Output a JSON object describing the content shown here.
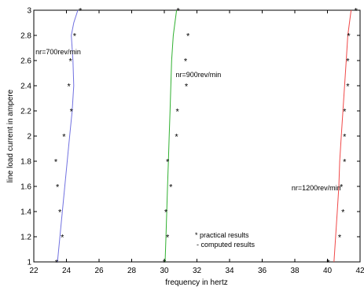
{
  "chart_data": {
    "type": "line",
    "xlabel": "frequency in hertz",
    "ylabel": "line load current in ampere",
    "xlim": [
      22,
      42
    ],
    "ylim": [
      1,
      3
    ],
    "x_ticks": [
      "22",
      "24",
      "26",
      "28",
      "30",
      "32",
      "34",
      "36",
      "38",
      "40",
      "42"
    ],
    "y_ticks": [
      "1",
      "1.2",
      "1.4",
      "1.6",
      "1.8",
      "2",
      "2.2",
      "2.4",
      "2.6",
      "2.8",
      "3"
    ],
    "grid": false,
    "legend": [
      "* practical results",
      "- computed results"
    ],
    "series": [
      {
        "name": "nr=700rev/min",
        "color": "#7070e0",
        "marker_color": "#2ec8e0",
        "computed": {
          "x": [
            23.45,
            23.6,
            23.75,
            23.9,
            24.05,
            24.2,
            24.35,
            24.45,
            24.4,
            24.3,
            24.45,
            24.7
          ],
          "y": [
            1.0,
            1.2,
            1.4,
            1.6,
            1.8,
            2.0,
            2.2,
            2.4,
            2.6,
            2.8,
            2.9,
            3.0
          ]
        },
        "practical": {
          "x": [
            23.4,
            23.75,
            23.6,
            23.45,
            23.35,
            23.85,
            24.3,
            24.15,
            24.25,
            24.5,
            24.85
          ],
          "y": [
            1.0,
            1.2,
            1.4,
            1.6,
            1.8,
            2.0,
            2.2,
            2.4,
            2.6,
            2.8,
            3.0
          ]
        }
      },
      {
        "name": "nr=900rev/min",
        "color": "#30b030",
        "marker_color": "#d040d0",
        "computed": {
          "x": [
            30.05,
            30.1,
            30.15,
            30.2,
            30.25,
            30.3,
            30.35,
            30.4,
            30.45,
            30.55,
            30.65,
            30.75
          ],
          "y": [
            1.0,
            1.2,
            1.4,
            1.6,
            1.8,
            2.0,
            2.2,
            2.4,
            2.6,
            2.8,
            2.9,
            3.0
          ]
        },
        "practical": {
          "x": [
            30.0,
            30.2,
            30.1,
            30.4,
            30.2,
            30.75,
            30.8,
            31.35,
            31.3,
            31.45,
            30.85
          ],
          "y": [
            1.0,
            1.2,
            1.4,
            1.6,
            1.8,
            2.0,
            2.2,
            2.4,
            2.6,
            2.8,
            3.0
          ]
        }
      },
      {
        "name": "nr=1200rev/min",
        "color": "#f04848",
        "marker_color": "#e0c020",
        "computed": {
          "x": [
            40.4,
            40.5,
            40.6,
            40.7,
            40.75,
            40.85,
            40.95,
            41.05,
            41.15,
            41.25,
            41.35,
            41.45
          ],
          "y": [
            1.0,
            1.2,
            1.4,
            1.6,
            1.8,
            2.0,
            2.2,
            2.4,
            2.6,
            2.8,
            2.9,
            3.0
          ]
        },
        "practical": {
          "x": [
            40.05,
            40.75,
            40.95,
            40.85,
            41.05,
            41.05,
            41.05,
            41.25,
            41.25,
            41.3,
            41.75
          ],
          "y": [
            1.0,
            1.2,
            1.4,
            1.6,
            1.8,
            2.0,
            2.2,
            2.4,
            2.6,
            2.8,
            3.0
          ]
        }
      }
    ],
    "annotations": [
      {
        "text": "nr=700rev/min",
        "x": 22.1,
        "y": 2.65
      },
      {
        "text": "nr=900rev/min",
        "x": 30.7,
        "y": 2.47
      },
      {
        "text": "nr=1200rev/min",
        "x": 37.8,
        "y": 1.57
      }
    ]
  }
}
